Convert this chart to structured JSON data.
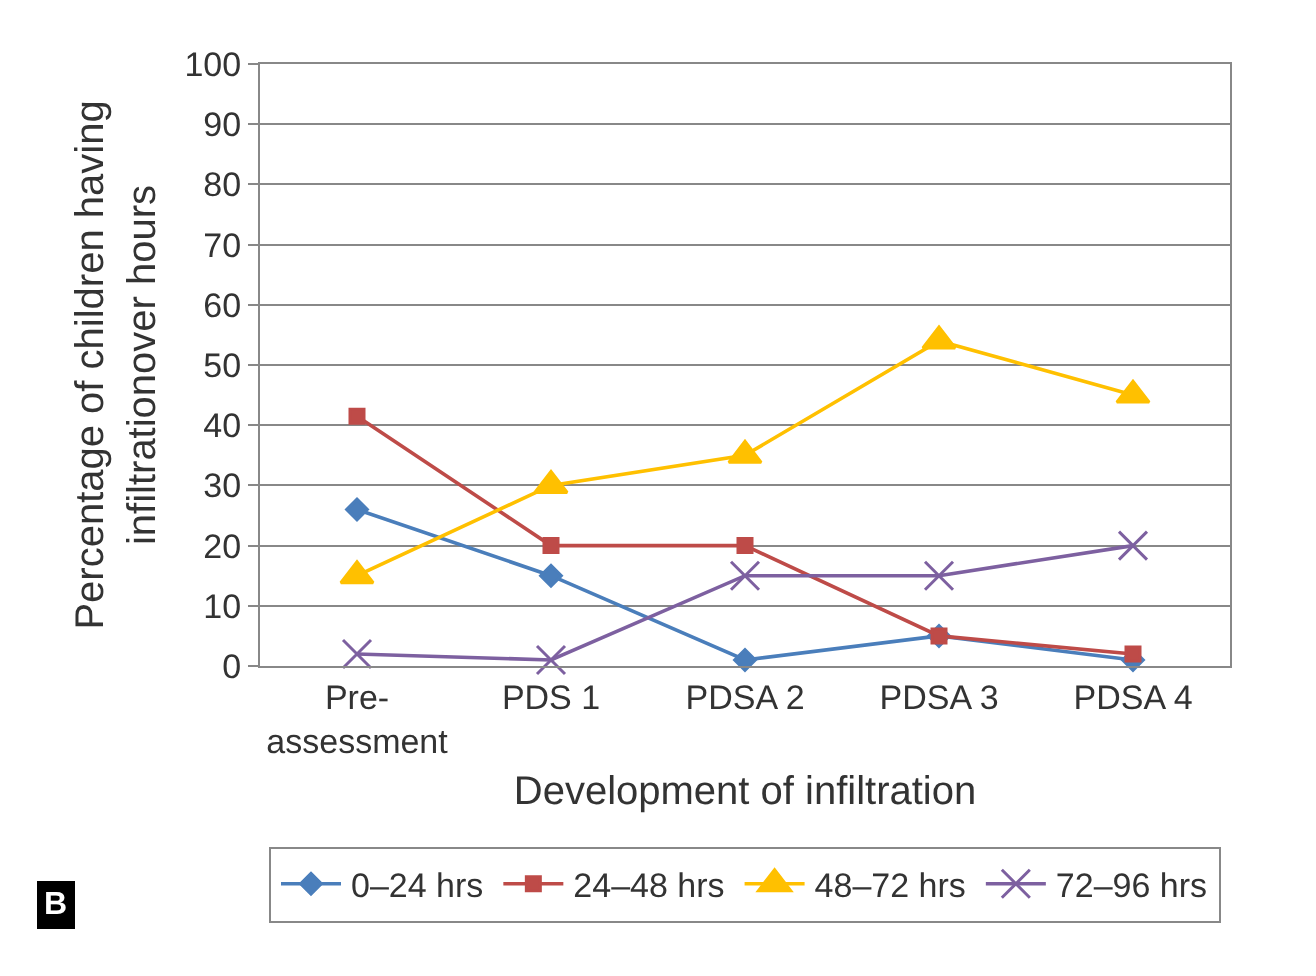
{
  "chart_data": {
    "type": "line",
    "xlabel": "Development of infiltration",
    "ylabel": "Percentage of children having infiltrationover hours",
    "categories": [
      "Pre-assessment",
      "PDS 1",
      "PDSA 2",
      "PDSA 3",
      "PDSA 4"
    ],
    "series": [
      {
        "name": "0–24 hrs",
        "color": "#4a7ebb",
        "marker": "diamond",
        "values": [
          26,
          15,
          1,
          5,
          1
        ]
      },
      {
        "name": "24–48 hrs",
        "color": "#be4b48",
        "marker": "square",
        "values": [
          41.5,
          20,
          20,
          5,
          2
        ]
      },
      {
        "name": "48–72 hrs",
        "color": "#ffc000",
        "marker": "triangle",
        "values": [
          15,
          30,
          35,
          54,
          45
        ]
      },
      {
        "name": "72–96 hrs",
        "color": "#7d60a0",
        "marker": "cross",
        "values": [
          2,
          1,
          15,
          15,
          20
        ]
      }
    ],
    "ylim": [
      0,
      100
    ],
    "yticks": [
      0,
      10,
      20,
      30,
      40,
      50,
      60,
      70,
      80,
      90,
      100
    ],
    "grid": "y",
    "legend": "bottom",
    "line_style": "solid",
    "annotations": [
      "B"
    ]
  }
}
